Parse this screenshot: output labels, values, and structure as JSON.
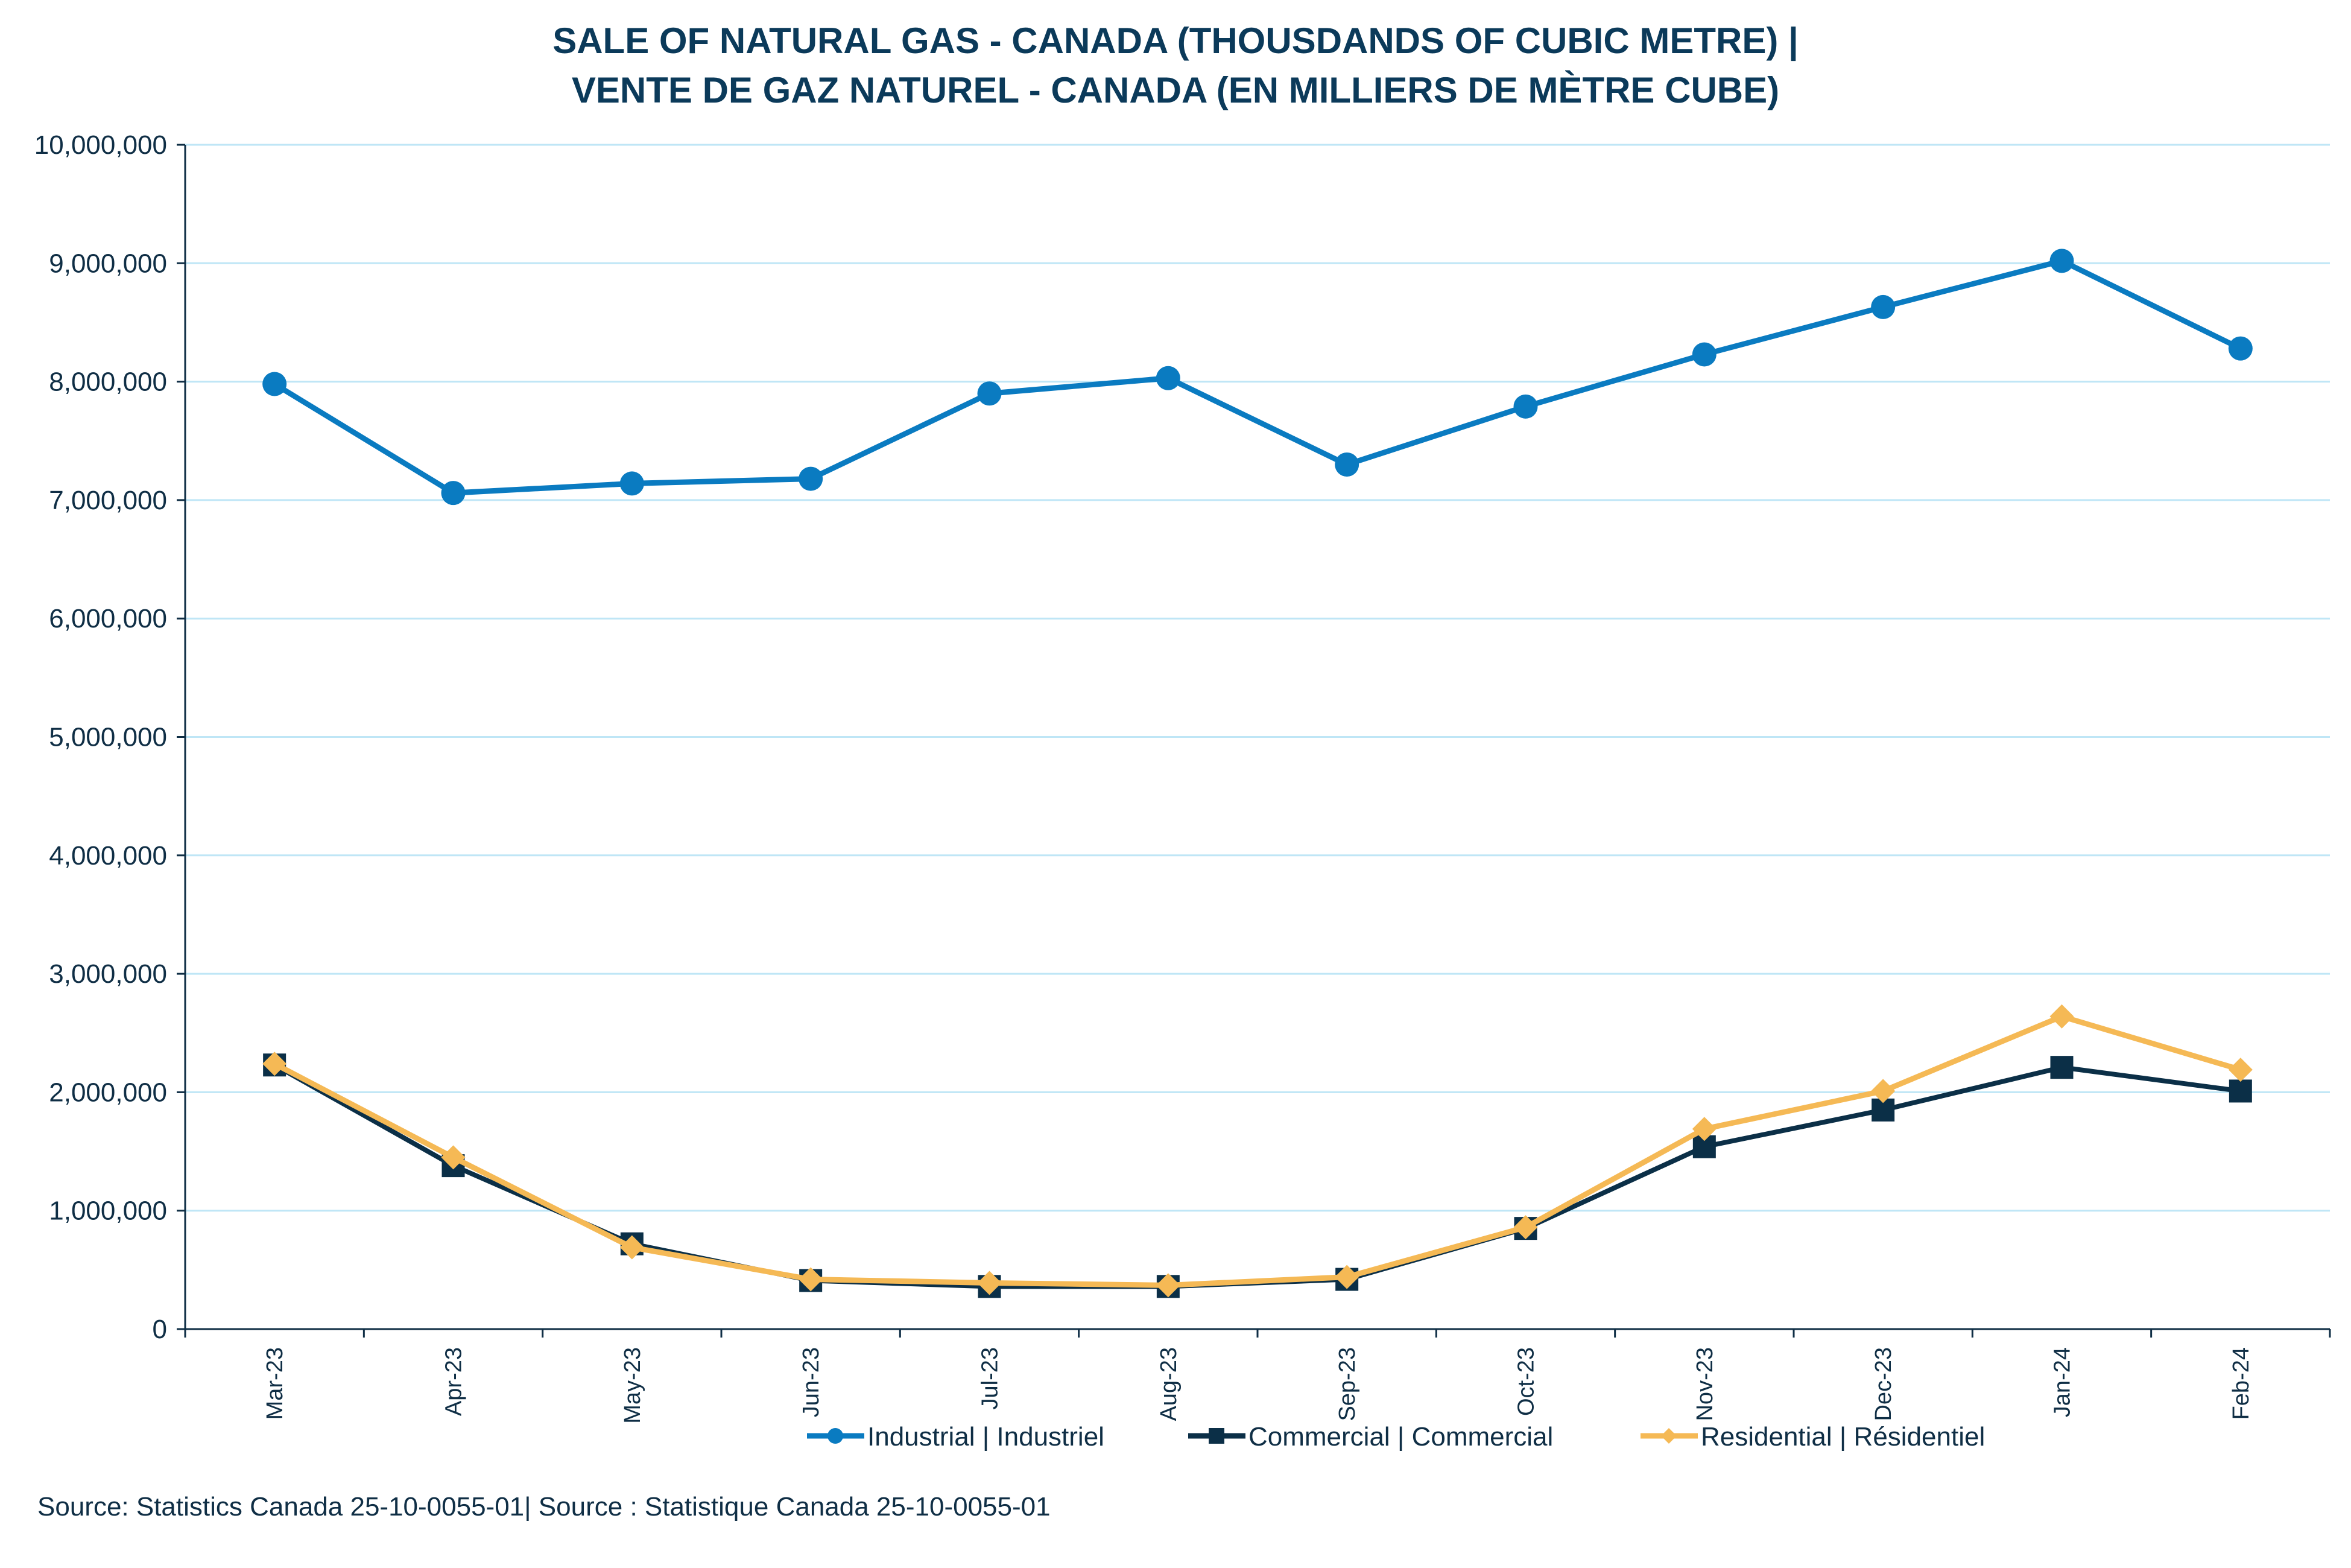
{
  "chart_data": {
    "type": "line",
    "title_line1": "SALE OF NATURAL GAS - CANADA (THOUSDANDS OF CUBIC METRE) |",
    "title_line2": "VENTE DE GAZ NATUREL - CANADA (EN MILLIERS DE MÈTRE CUBE)",
    "categories": [
      "Mar-23",
      "Apr-23",
      "May-23",
      "Jun-23",
      "Jul-23",
      "Aug-23",
      "Sep-23",
      "Oct-23",
      "Nov-23",
      "Dec-23",
      "Jan-24",
      "Feb-24"
    ],
    "ylim": [
      0,
      10000000
    ],
    "yticks": [
      0,
      1000000,
      2000000,
      3000000,
      4000000,
      5000000,
      6000000,
      7000000,
      8000000,
      9000000,
      10000000
    ],
    "ytick_labels": [
      "0",
      "1,000,000",
      "2,000,000",
      "3,000,000",
      "4,000,000",
      "5,000,000",
      "6,000,000",
      "7,000,000",
      "8,000,000",
      "9,000,000",
      "10,000,000"
    ],
    "grid": true,
    "legend_position": "bottom",
    "series": [
      {
        "name": "Industrial | Industriel",
        "color": "#0a7bc1",
        "marker": "circle",
        "values": [
          7980000,
          7060000,
          7140000,
          7180000,
          7900000,
          8030000,
          7300000,
          7790000,
          8230000,
          8630000,
          9020000,
          8280000
        ]
      },
      {
        "name": "Commercial | Commercial",
        "color": "#0b2f47",
        "marker": "square",
        "values": [
          2230000,
          1380000,
          720000,
          410000,
          360000,
          360000,
          420000,
          850000,
          1540000,
          1850000,
          2210000,
          2010000
        ]
      },
      {
        "name": "Residential | Résidentiel",
        "color": "#f5b955",
        "marker": "diamond",
        "values": [
          2240000,
          1450000,
          690000,
          420000,
          390000,
          370000,
          440000,
          860000,
          1690000,
          2010000,
          2640000,
          2190000
        ]
      }
    ]
  },
  "source": "Source: Statistics Canada 25-10-0055-01| Source : Statistique Canada 25-10-0055-01"
}
